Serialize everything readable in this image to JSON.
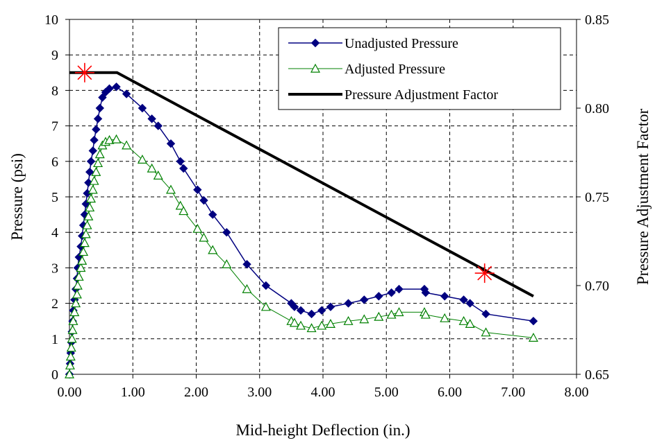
{
  "colors": {
    "unadjusted": "#000080",
    "adjusted": "#008000",
    "factor": "#000000",
    "marker_star": "#ff0000"
  },
  "chart_data": {
    "type": "line",
    "xlabel": "Mid-height Deflection (in.)",
    "ylabel": "Pressure (psi)",
    "y2label": "Pressure Adjustment Factor",
    "xlim": [
      0,
      8
    ],
    "ylim": [
      0,
      10
    ],
    "y2lim": [
      0.65,
      0.85
    ],
    "x_ticks": [
      "0.00",
      "1.00",
      "2.00",
      "3.00",
      "4.00",
      "5.00",
      "6.00",
      "7.00",
      "8.00"
    ],
    "y_ticks": [
      "0",
      "1",
      "2",
      "3",
      "4",
      "5",
      "6",
      "7",
      "8",
      "9",
      "10"
    ],
    "y2_ticks": [
      "0.65",
      "0.70",
      "0.75",
      "0.80",
      "0.85"
    ],
    "grid": true,
    "legend_position": "top-right",
    "series": [
      {
        "name": "Unadjusted Pressure",
        "marker": "diamond",
        "axis": "left",
        "points": [
          [
            0.0,
            0.0
          ],
          [
            0.01,
            0.3
          ],
          [
            0.02,
            0.6
          ],
          [
            0.03,
            0.9
          ],
          [
            0.04,
            1.2
          ],
          [
            0.05,
            1.5
          ],
          [
            0.06,
            1.8
          ],
          [
            0.08,
            2.1
          ],
          [
            0.1,
            2.4
          ],
          [
            0.12,
            2.7
          ],
          [
            0.13,
            3.0
          ],
          [
            0.15,
            3.3
          ],
          [
            0.18,
            3.6
          ],
          [
            0.2,
            3.9
          ],
          [
            0.22,
            4.2
          ],
          [
            0.24,
            4.5
          ],
          [
            0.26,
            4.8
          ],
          [
            0.28,
            5.1
          ],
          [
            0.3,
            5.4
          ],
          [
            0.32,
            5.7
          ],
          [
            0.34,
            6.0
          ],
          [
            0.37,
            6.3
          ],
          [
            0.39,
            6.6
          ],
          [
            0.42,
            6.9
          ],
          [
            0.45,
            7.2
          ],
          [
            0.48,
            7.5
          ],
          [
            0.52,
            7.8
          ],
          [
            0.57,
            7.95
          ],
          [
            0.63,
            8.05
          ],
          [
            0.74,
            8.1
          ],
          [
            0.9,
            7.9
          ],
          [
            1.15,
            7.5
          ],
          [
            1.3,
            7.2
          ],
          [
            1.4,
            7.0
          ],
          [
            1.6,
            6.5
          ],
          [
            1.75,
            6.0
          ],
          [
            1.8,
            5.8
          ],
          [
            2.02,
            5.2
          ],
          [
            2.12,
            4.9
          ],
          [
            2.26,
            4.5
          ],
          [
            2.48,
            4.0
          ],
          [
            2.8,
            3.1
          ],
          [
            3.1,
            2.5
          ],
          [
            3.5,
            2.0
          ],
          [
            3.55,
            1.9
          ],
          [
            3.65,
            1.8
          ],
          [
            3.82,
            1.7
          ],
          [
            3.98,
            1.8
          ],
          [
            4.12,
            1.9
          ],
          [
            4.4,
            2.0
          ],
          [
            4.65,
            2.1
          ],
          [
            4.88,
            2.2
          ],
          [
            5.08,
            2.3
          ],
          [
            5.2,
            2.4
          ],
          [
            5.6,
            2.4
          ],
          [
            5.62,
            2.3
          ],
          [
            5.92,
            2.2
          ],
          [
            6.22,
            2.1
          ],
          [
            6.32,
            2.0
          ],
          [
            6.57,
            1.7
          ],
          [
            7.32,
            1.5
          ]
        ]
      },
      {
        "name": "Adjusted Pressure",
        "marker": "triangle-open",
        "axis": "left",
        "points": [
          [
            0.0,
            0.0
          ],
          [
            0.01,
            0.25
          ],
          [
            0.02,
            0.5
          ],
          [
            0.03,
            0.75
          ],
          [
            0.04,
            1.0
          ],
          [
            0.05,
            1.25
          ],
          [
            0.06,
            1.5
          ],
          [
            0.08,
            1.75
          ],
          [
            0.1,
            2.0
          ],
          [
            0.12,
            2.25
          ],
          [
            0.13,
            2.5
          ],
          [
            0.15,
            2.75
          ],
          [
            0.18,
            3.0
          ],
          [
            0.2,
            3.2
          ],
          [
            0.22,
            3.45
          ],
          [
            0.24,
            3.7
          ],
          [
            0.26,
            3.95
          ],
          [
            0.28,
            4.2
          ],
          [
            0.3,
            4.45
          ],
          [
            0.32,
            4.7
          ],
          [
            0.34,
            4.95
          ],
          [
            0.37,
            5.2
          ],
          [
            0.39,
            5.45
          ],
          [
            0.42,
            5.7
          ],
          [
            0.45,
            5.95
          ],
          [
            0.48,
            6.2
          ],
          [
            0.52,
            6.45
          ],
          [
            0.57,
            6.55
          ],
          [
            0.63,
            6.6
          ],
          [
            0.74,
            6.62
          ],
          [
            0.9,
            6.45
          ],
          [
            1.15,
            6.05
          ],
          [
            1.3,
            5.8
          ],
          [
            1.4,
            5.6
          ],
          [
            1.6,
            5.2
          ],
          [
            1.75,
            4.75
          ],
          [
            1.8,
            4.6
          ],
          [
            2.02,
            4.1
          ],
          [
            2.12,
            3.85
          ],
          [
            2.26,
            3.5
          ],
          [
            2.48,
            3.1
          ],
          [
            2.8,
            2.4
          ],
          [
            3.1,
            1.9
          ],
          [
            3.5,
            1.5
          ],
          [
            3.55,
            1.45
          ],
          [
            3.65,
            1.37
          ],
          [
            3.82,
            1.3
          ],
          [
            3.98,
            1.37
          ],
          [
            4.12,
            1.42
          ],
          [
            4.4,
            1.5
          ],
          [
            4.65,
            1.55
          ],
          [
            4.88,
            1.62
          ],
          [
            5.08,
            1.68
          ],
          [
            5.2,
            1.75
          ],
          [
            5.6,
            1.75
          ],
          [
            5.62,
            1.68
          ],
          [
            5.92,
            1.58
          ],
          [
            6.22,
            1.5
          ],
          [
            6.32,
            1.42
          ],
          [
            6.57,
            1.18
          ],
          [
            7.32,
            1.03
          ]
        ]
      },
      {
        "name": "Pressure Adjustment Factor",
        "marker": "none",
        "axis": "right",
        "points": [
          [
            0.0,
            0.82
          ],
          [
            0.75,
            0.82
          ],
          [
            7.32,
            0.694
          ]
        ]
      }
    ],
    "annotations": [
      {
        "marker": "asterisk",
        "x": 0.24,
        "y2": 0.82
      },
      {
        "marker": "asterisk",
        "x": 6.55,
        "y2": 0.707
      }
    ]
  }
}
